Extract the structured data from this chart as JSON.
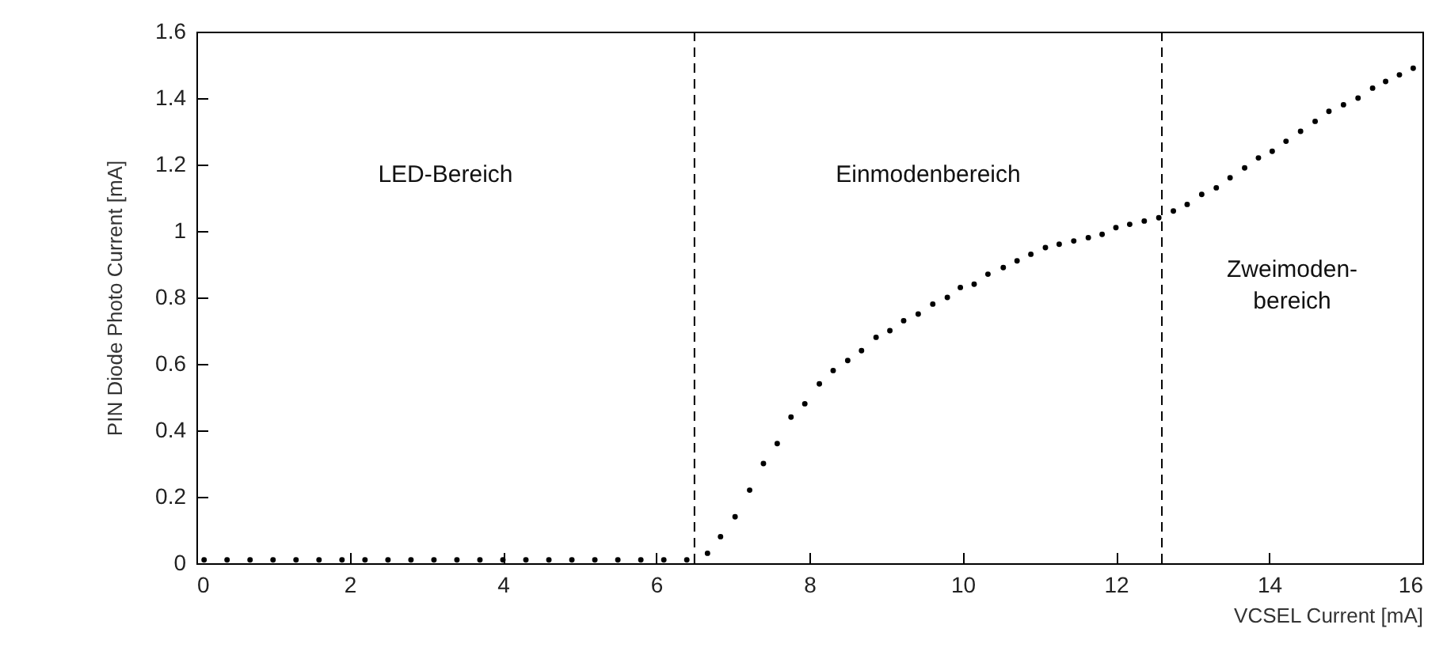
{
  "chart_data": {
    "type": "scatter",
    "xlabel": "VCSEL Current [mA]",
    "ylabel": "PIN  Diode Photo Current [mA]",
    "marker": "circle",
    "xlim": [
      0,
      16
    ],
    "xticks": [
      0,
      2,
      4,
      6,
      8,
      10,
      12,
      14,
      16
    ],
    "ylim": [
      0,
      1.6
    ],
    "yticks": [
      0,
      0.2,
      0.4,
      0.6,
      0.8,
      1,
      1.2,
      1.4,
      1.6
    ],
    "grid": false,
    "series": [
      {
        "color": "#000000",
        "x": [
          0.1,
          0.4,
          0.7,
          1.0,
          1.3,
          1.6,
          1.9,
          2.2,
          2.5,
          2.8,
          3.1,
          3.4,
          3.7,
          4.0,
          4.3,
          4.6,
          4.9,
          5.2,
          5.5,
          5.8,
          6.1,
          6.4,
          6.67,
          6.84,
          7.03,
          7.22,
          7.4,
          7.58,
          7.76,
          7.94,
          8.13,
          8.31,
          8.5,
          8.68,
          8.87,
          9.05,
          9.23,
          9.42,
          9.61,
          9.8,
          9.97,
          10.15,
          10.33,
          10.53,
          10.71,
          10.89,
          11.08,
          11.26,
          11.45,
          11.64,
          11.82,
          12.0,
          12.18,
          12.37,
          12.56,
          12.75,
          12.93,
          13.12,
          13.31,
          13.49,
          13.68,
          13.86,
          14.04,
          14.22,
          14.41,
          14.6,
          14.78,
          14.97,
          15.16,
          15.35,
          15.52,
          15.7,
          15.88
        ],
        "values": [
          0.01,
          0.01,
          0.01,
          0.01,
          0.01,
          0.01,
          0.01,
          0.01,
          0.01,
          0.01,
          0.01,
          0.01,
          0.01,
          0.01,
          0.01,
          0.01,
          0.01,
          0.01,
          0.01,
          0.01,
          0.01,
          0.01,
          0.03,
          0.08,
          0.14,
          0.22,
          0.3,
          0.36,
          0.44,
          0.48,
          0.54,
          0.58,
          0.61,
          0.64,
          0.68,
          0.7,
          0.73,
          0.75,
          0.78,
          0.8,
          0.83,
          0.84,
          0.87,
          0.89,
          0.91,
          0.93,
          0.95,
          0.96,
          0.97,
          0.98,
          0.99,
          1.01,
          1.02,
          1.03,
          1.04,
          1.06,
          1.08,
          1.11,
          1.13,
          1.16,
          1.19,
          1.22,
          1.24,
          1.27,
          1.3,
          1.33,
          1.36,
          1.38,
          1.4,
          1.43,
          1.45,
          1.47,
          1.49
        ]
      }
    ],
    "ref_lines": [
      {
        "axis": "x",
        "value": 6.5,
        "color": "#000000",
        "line_style": "dashed"
      },
      {
        "axis": "x",
        "value": 12.6,
        "color": "#000000",
        "line_style": "dashed"
      }
    ],
    "annotations": [
      "LED-Bereich",
      "Einmodenbereich",
      "Zweimoden-\nbereich"
    ]
  }
}
